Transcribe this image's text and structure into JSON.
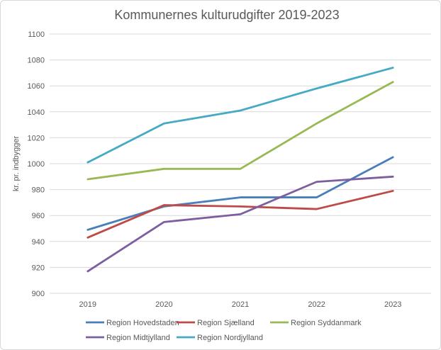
{
  "chart_data": {
    "type": "line",
    "title": "Kommunernes kulturudgifter 2019-2023",
    "xlabel": "",
    "ylabel": "kr. pr. indbygger",
    "categories": [
      "2019",
      "2020",
      "2021",
      "2022",
      "2023"
    ],
    "ylim": [
      900,
      1100
    ],
    "yticks": [
      900,
      920,
      940,
      960,
      980,
      1000,
      1020,
      1040,
      1060,
      1080,
      1100
    ],
    "grid": true,
    "legend_position": "bottom",
    "series": [
      {
        "name": "Region Hovedstaden",
        "color": "#4a7ebb",
        "values": [
          949,
          967,
          974,
          974,
          1005
        ]
      },
      {
        "name": "Region Sjælland",
        "color": "#be4b48",
        "values": [
          943,
          968,
          967,
          965,
          979
        ]
      },
      {
        "name": "Region Syddanmark",
        "color": "#98b954",
        "values": [
          988,
          996,
          996,
          1031,
          1063
        ]
      },
      {
        "name": "Region Midtjylland",
        "color": "#7d5fa0",
        "values": [
          917,
          955,
          961,
          986,
          990
        ]
      },
      {
        "name": "Region Nordjylland",
        "color": "#46aac5",
        "values": [
          1001,
          1031,
          1041,
          1058,
          1074
        ]
      }
    ]
  }
}
